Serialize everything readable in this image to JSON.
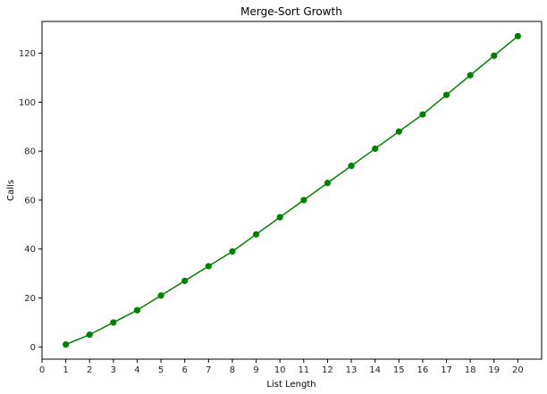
{
  "chart_data": {
    "type": "line",
    "title": "Merge-Sort Growth",
    "xlabel": "List Length",
    "ylabel": "Calls",
    "xlim": [
      0,
      21
    ],
    "ylim": [
      -5,
      133
    ],
    "x_ticks": [
      0,
      1,
      2,
      3,
      4,
      5,
      6,
      7,
      8,
      9,
      10,
      11,
      12,
      13,
      14,
      15,
      16,
      17,
      18,
      19,
      20
    ],
    "y_ticks": [
      0,
      20,
      40,
      60,
      80,
      100,
      120
    ],
    "grid": false,
    "series": [
      {
        "color": "#008000",
        "marker": "circle",
        "x": [
          1,
          2,
          3,
          4,
          5,
          6,
          7,
          8,
          9,
          10,
          11,
          12,
          13,
          14,
          15,
          16,
          17,
          18,
          19,
          20
        ],
        "y": [
          1,
          5,
          10,
          15,
          21,
          27,
          33,
          39,
          46,
          53,
          60,
          67,
          74,
          81,
          88,
          95,
          103,
          111,
          119,
          127
        ]
      }
    ]
  }
}
